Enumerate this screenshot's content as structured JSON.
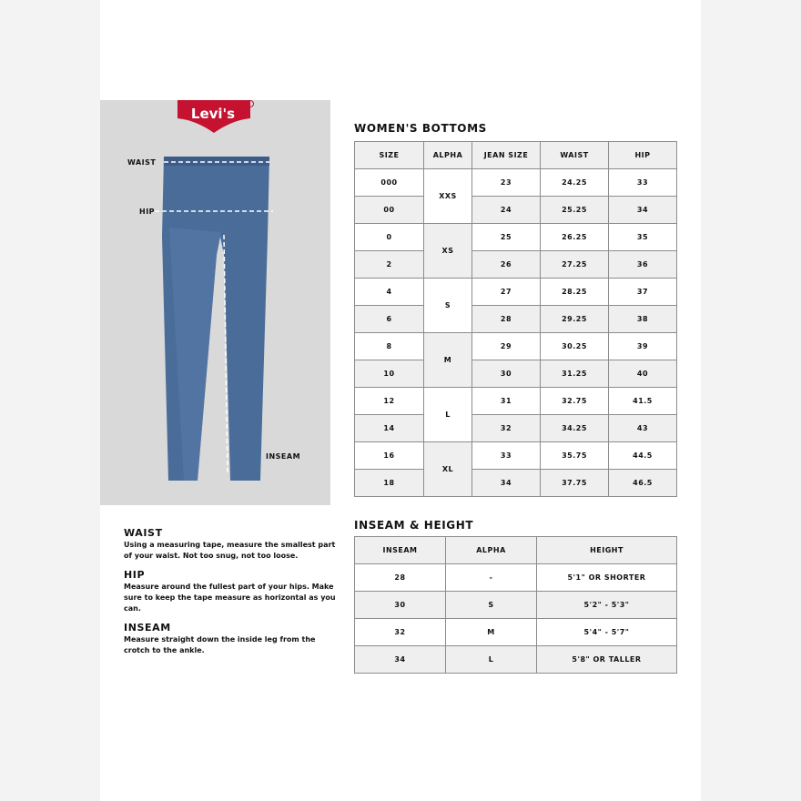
{
  "brand": {
    "logo_text": "Levi's",
    "color": "#c41230"
  },
  "diagram": {
    "labels": {
      "waist": "WAIST",
      "hip": "HIP",
      "inseam": "INSEAM"
    }
  },
  "womens_bottoms": {
    "title": "WOMEN'S BOTTOMS",
    "headers": [
      "SIZE",
      "ALPHA",
      "JEAN SIZE",
      "WAIST",
      "HIP"
    ],
    "rows": [
      {
        "size": "000",
        "alpha": "XXS",
        "jean": "23",
        "waist": "24.25",
        "hip": "33"
      },
      {
        "size": "00",
        "jean": "24",
        "waist": "25.25",
        "hip": "34"
      },
      {
        "size": "0",
        "alpha": "XS",
        "jean": "25",
        "waist": "26.25",
        "hip": "35"
      },
      {
        "size": "2",
        "jean": "26",
        "waist": "27.25",
        "hip": "36"
      },
      {
        "size": "4",
        "alpha": "S",
        "jean": "27",
        "waist": "28.25",
        "hip": "37"
      },
      {
        "size": "6",
        "jean": "28",
        "waist": "29.25",
        "hip": "38"
      },
      {
        "size": "8",
        "alpha": "M",
        "jean": "29",
        "waist": "30.25",
        "hip": "39"
      },
      {
        "size": "10",
        "jean": "30",
        "waist": "31.25",
        "hip": "40"
      },
      {
        "size": "12",
        "alpha": "L",
        "jean": "31",
        "waist": "32.75",
        "hip": "41.5"
      },
      {
        "size": "14",
        "jean": "32",
        "waist": "34.25",
        "hip": "43"
      },
      {
        "size": "16",
        "alpha": "XL",
        "jean": "33",
        "waist": "35.75",
        "hip": "44.5"
      },
      {
        "size": "18",
        "jean": "34",
        "waist": "37.75",
        "hip": "46.5"
      }
    ]
  },
  "inseam_height": {
    "title": "INSEAM & HEIGHT",
    "headers": [
      "INSEAM",
      "ALPHA",
      "HEIGHT"
    ],
    "rows": [
      [
        "28",
        "-",
        "5'1\" OR SHORTER"
      ],
      [
        "30",
        "S",
        "5'2\" - 5'3\""
      ],
      [
        "32",
        "M",
        "5'4\" - 5'7\""
      ],
      [
        "34",
        "L",
        "5'8\" OR TALLER"
      ]
    ]
  },
  "instructions": [
    {
      "title": "WAIST",
      "text": "Using a measuring tape, measure the smallest part of your waist. Not too snug, not too loose."
    },
    {
      "title": "HIP",
      "text": "Measure around the fullest part of your hips. Make sure to keep the tape measure as horizontal as you can."
    },
    {
      "title": "INSEAM",
      "text": "Measure straight down the inside leg from the crotch to the ankle."
    }
  ]
}
